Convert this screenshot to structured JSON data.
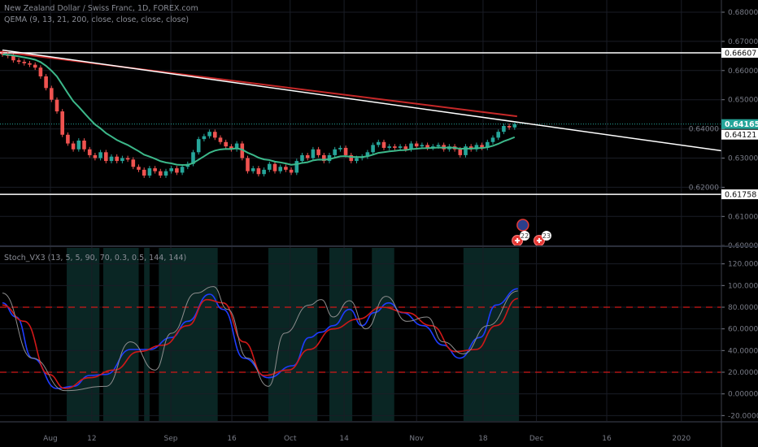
{
  "chart_data": [
    {
      "type": "candlestick",
      "title": "New Zealand Dollar / Swiss Franc, 1D, FOREX.com",
      "indicator_legend": "QEMA (9, 13, 21, 200, close, close, close, close)",
      "ylim": [
        0.6,
        0.68
      ],
      "y_ticks": [
        "0.68000",
        "0.67000",
        "0.66000",
        "0.65000",
        "0.64000",
        "0.63000",
        "0.62000",
        "0.61000",
        "0.60000"
      ],
      "closes": [
        0.6655,
        0.665,
        0.6635,
        0.663,
        0.6625,
        0.662,
        0.661,
        0.658,
        0.654,
        0.65,
        0.646,
        0.638,
        0.635,
        0.633,
        0.636,
        0.633,
        0.631,
        0.63,
        0.632,
        0.629,
        0.6305,
        0.629,
        0.63,
        0.6295,
        0.627,
        0.626,
        0.624,
        0.6265,
        0.6255,
        0.624,
        0.6255,
        0.6265,
        0.625,
        0.627,
        0.628,
        0.632,
        0.6365,
        0.6375,
        0.639,
        0.637,
        0.6355,
        0.634,
        0.633,
        0.635,
        0.63,
        0.6255,
        0.6265,
        0.6245,
        0.626,
        0.628,
        0.6255,
        0.627,
        0.626,
        0.625,
        0.629,
        0.631,
        0.63,
        0.633,
        0.631,
        0.629,
        0.631,
        0.633,
        0.6335,
        0.631,
        0.629,
        0.63,
        0.6305,
        0.632,
        0.6345,
        0.6355,
        0.6335,
        0.634,
        0.6335,
        0.634,
        0.633,
        0.635,
        0.634,
        0.6345,
        0.6335,
        0.634,
        0.6345,
        0.633,
        0.634,
        0.633,
        0.631,
        0.634,
        0.633,
        0.6345,
        0.6335,
        0.6355,
        0.637,
        0.639,
        0.641,
        0.6405,
        0.6416
      ],
      "ema_fast_period": 13,
      "ema200": {
        "start": 0.6665,
        "end": 0.6443
      },
      "trendline": {
        "start_bar": 0,
        "start": 0.667,
        "end_bar": 132,
        "end": 0.6325
      },
      "horizontal_levels": [
        {
          "label": "0.66607",
          "value": 0.66607,
          "style": "solid"
        },
        {
          "label": "0.64165",
          "value": 0.64165,
          "style": "dotted",
          "highlight": true
        },
        {
          "label": "0.64121",
          "value": 0.64121,
          "style": "none"
        },
        {
          "label": "0.61758",
          "value": 0.61758,
          "style": "solid"
        }
      ],
      "events": [
        {
          "bar": 95.5,
          "kind": "globe"
        },
        {
          "bar": 94.5,
          "kind": "flag",
          "label": "22"
        },
        {
          "bar": 98.5,
          "kind": "flag",
          "label": "23"
        }
      ],
      "colors": {
        "up": "#26a69a",
        "down": "#ef5350",
        "ema_fast": "#3cb88a",
        "ema200": "#c62828",
        "level_tag": "#26a69a"
      }
    },
    {
      "type": "line",
      "title": "Stoch_VX3 (13, 5, 5, 90, 70, 0.3, 0.5, 144, 144)",
      "ylim": [
        -30,
        130
      ],
      "y_ticks": [
        "120.00000",
        "100.00000",
        "80.00000",
        "60.00000",
        "40.00000",
        "20.00000",
        "0.00000",
        "-20.00000"
      ],
      "bands": [
        80,
        20
      ],
      "shaded_bar_ranges": [
        [
          11.8,
          17.8
        ],
        [
          18.5,
          25
        ],
        [
          26,
          27
        ],
        [
          28.7,
          39.5
        ],
        [
          48.8,
          57.8
        ],
        [
          60,
          64.2
        ],
        [
          67.8,
          71.9
        ],
        [
          84.6,
          94.8
        ]
      ],
      "series": [
        {
          "name": "blue",
          "color": "#1e3cff",
          "points": [
            [
              0,
              84
            ],
            [
              2.5,
              71
            ],
            [
              5.5,
              33
            ],
            [
              10,
              5
            ],
            [
              13,
              7
            ],
            [
              16,
              17
            ],
            [
              19,
              18
            ],
            [
              23.5,
              41
            ],
            [
              27,
              41
            ],
            [
              31,
              52
            ],
            [
              34,
              67
            ],
            [
              38,
              92
            ],
            [
              40.5,
              78
            ],
            [
              44.3,
              33
            ],
            [
              48.8,
              15
            ],
            [
              53.3,
              26
            ],
            [
              56.3,
              52
            ],
            [
              58.5,
              57
            ],
            [
              60.7,
              63
            ],
            [
              63.7,
              78
            ],
            [
              66,
              63
            ],
            [
              68.2,
              75
            ],
            [
              70.9,
              84
            ],
            [
              73.4,
              75
            ],
            [
              77.2,
              63
            ],
            [
              80.9,
              45
            ],
            [
              83.9,
              33
            ],
            [
              87.6,
              52
            ],
            [
              90.6,
              82
            ],
            [
              94.6,
              97
            ]
          ]
        },
        {
          "name": "red",
          "color": "#d01818",
          "points": [
            [
              0,
              82
            ],
            [
              4,
              67
            ],
            [
              8.5,
              18
            ],
            [
              11.5,
              5
            ],
            [
              16,
              15
            ],
            [
              20.5,
              22
            ],
            [
              25,
              39
            ],
            [
              29.5,
              45
            ],
            [
              34,
              63
            ],
            [
              37.5,
              87
            ],
            [
              40.5,
              84
            ],
            [
              44.3,
              48
            ],
            [
              48,
              17
            ],
            [
              52.5,
              22
            ],
            [
              56.3,
              41
            ],
            [
              60.7,
              60
            ],
            [
              65.2,
              69
            ],
            [
              69.7,
              80
            ],
            [
              74.2,
              75
            ],
            [
              78.7,
              63
            ],
            [
              83.1,
              39
            ],
            [
              86.9,
              41
            ],
            [
              90.6,
              63
            ],
            [
              94.6,
              88
            ]
          ]
        },
        {
          "name": "gray",
          "color": "#8e8e8e",
          "points": [
            [
              0,
              93
            ],
            [
              5.5,
              33
            ],
            [
              11.5,
              3
            ],
            [
              19,
              7
            ],
            [
              23.5,
              48
            ],
            [
              28,
              22
            ],
            [
              31,
              56
            ],
            [
              35.5,
              93
            ],
            [
              38.7,
              99
            ],
            [
              41.3,
              78
            ],
            [
              45,
              33
            ],
            [
              48.8,
              7
            ],
            [
              51.8,
              56
            ],
            [
              56.3,
              82
            ],
            [
              58.5,
              87
            ],
            [
              60.7,
              71
            ],
            [
              63.7,
              86
            ],
            [
              66.7,
              60
            ],
            [
              70.4,
              90
            ],
            [
              74.2,
              67
            ],
            [
              77.9,
              71
            ],
            [
              80.9,
              48
            ],
            [
              84.6,
              37
            ],
            [
              89.1,
              63
            ],
            [
              94.6,
              95
            ]
          ]
        }
      ]
    }
  ],
  "x_axis": {
    "ticks": [
      {
        "label": "Aug",
        "bar": 8.8
      },
      {
        "label": "12",
        "bar": 16.4
      },
      {
        "label": "Sep",
        "bar": 30.9
      },
      {
        "label": "16",
        "bar": 42.1
      },
      {
        "label": "Oct",
        "bar": 52.8
      },
      {
        "label": "14",
        "bar": 62.7
      },
      {
        "label": "Nov",
        "bar": 76
      },
      {
        "label": "18",
        "bar": 88.2
      },
      {
        "label": "Dec",
        "bar": 98
      },
      {
        "label": "16",
        "bar": 110.9
      },
      {
        "label": "2020",
        "bar": 124.6
      }
    ]
  }
}
